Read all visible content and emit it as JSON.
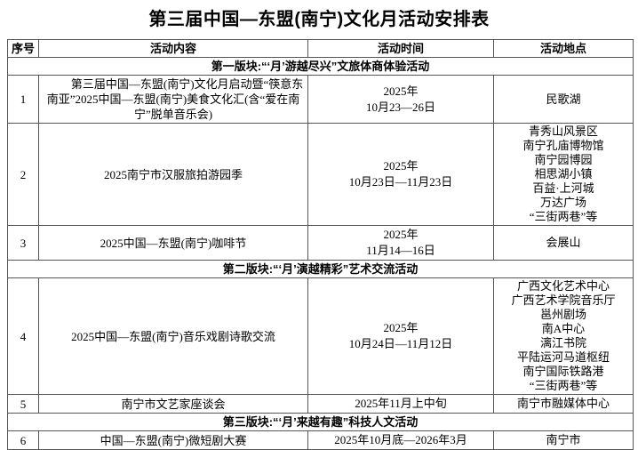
{
  "title": "第三届中国—东盟(南宁)文化月活动安排表",
  "table": {
    "headers": [
      "序号",
      "活动内容",
      "活动时间",
      "活动地点"
    ],
    "rows": [
      {
        "type": "section",
        "label": "第一版块:“‘月’游越尽兴”文旅体商体验活动"
      },
      {
        "type": "row",
        "no": "1",
        "indent": true,
        "content": "第三届中国—东盟(南宁)文化月启动暨“筷意东南亚”2025中国—东盟(南宁)美食文化汇(含“爱在南宁”脱单音乐会)",
        "time_lines": [
          "2025年",
          "10月23—26日"
        ],
        "locations": [
          "民歌湖"
        ]
      },
      {
        "type": "row",
        "no": "2",
        "indent": false,
        "content": "2025南宁市汉服旅拍游园季",
        "time_lines": [
          "2025年",
          "10月23日—11月23日"
        ],
        "locations": [
          "青秀山风景区",
          "南宁孔庙博物馆",
          "南宁园博园",
          "相思湖小镇",
          "百益·上河城",
          "万达广场",
          "“三街两巷”等"
        ]
      },
      {
        "type": "row",
        "no": "3",
        "indent": false,
        "content": "2025中国—东盟(南宁)咖啡节",
        "time_lines": [
          "2025年",
          "11月14—16日"
        ],
        "locations": [
          "会展山"
        ]
      },
      {
        "type": "section",
        "label": "第二版块:“‘月’演越精彩”艺术交流活动"
      },
      {
        "type": "row",
        "no": "4",
        "indent": false,
        "content": "2025中国—东盟(南宁)音乐戏剧诗歌交流",
        "time_lines": [
          "2025年",
          "10月24日—11月12日"
        ],
        "locations": [
          "广西文化艺术中心",
          "广西艺术学院音乐厅",
          "邕州剧场",
          "南A中心",
          "漓江书院",
          "平陆运河马道枢纽",
          "南宁国际铁路港",
          "“三街两巷”等"
        ]
      },
      {
        "type": "row",
        "no": "5",
        "indent": false,
        "content": "南宁市文艺家座谈会",
        "time_lines": [
          "2025年11月上中旬"
        ],
        "locations": [
          "南宁市融媒体中心"
        ]
      },
      {
        "type": "section",
        "label": "第三版块:“‘月’来越有趣”科技人文活动"
      },
      {
        "type": "row",
        "no": "6",
        "indent": false,
        "content": "中国—东盟(南宁)微短剧大赛",
        "time_lines": [
          "2025年10月底—2026年3月"
        ],
        "locations": [
          "南宁市"
        ]
      }
    ]
  }
}
